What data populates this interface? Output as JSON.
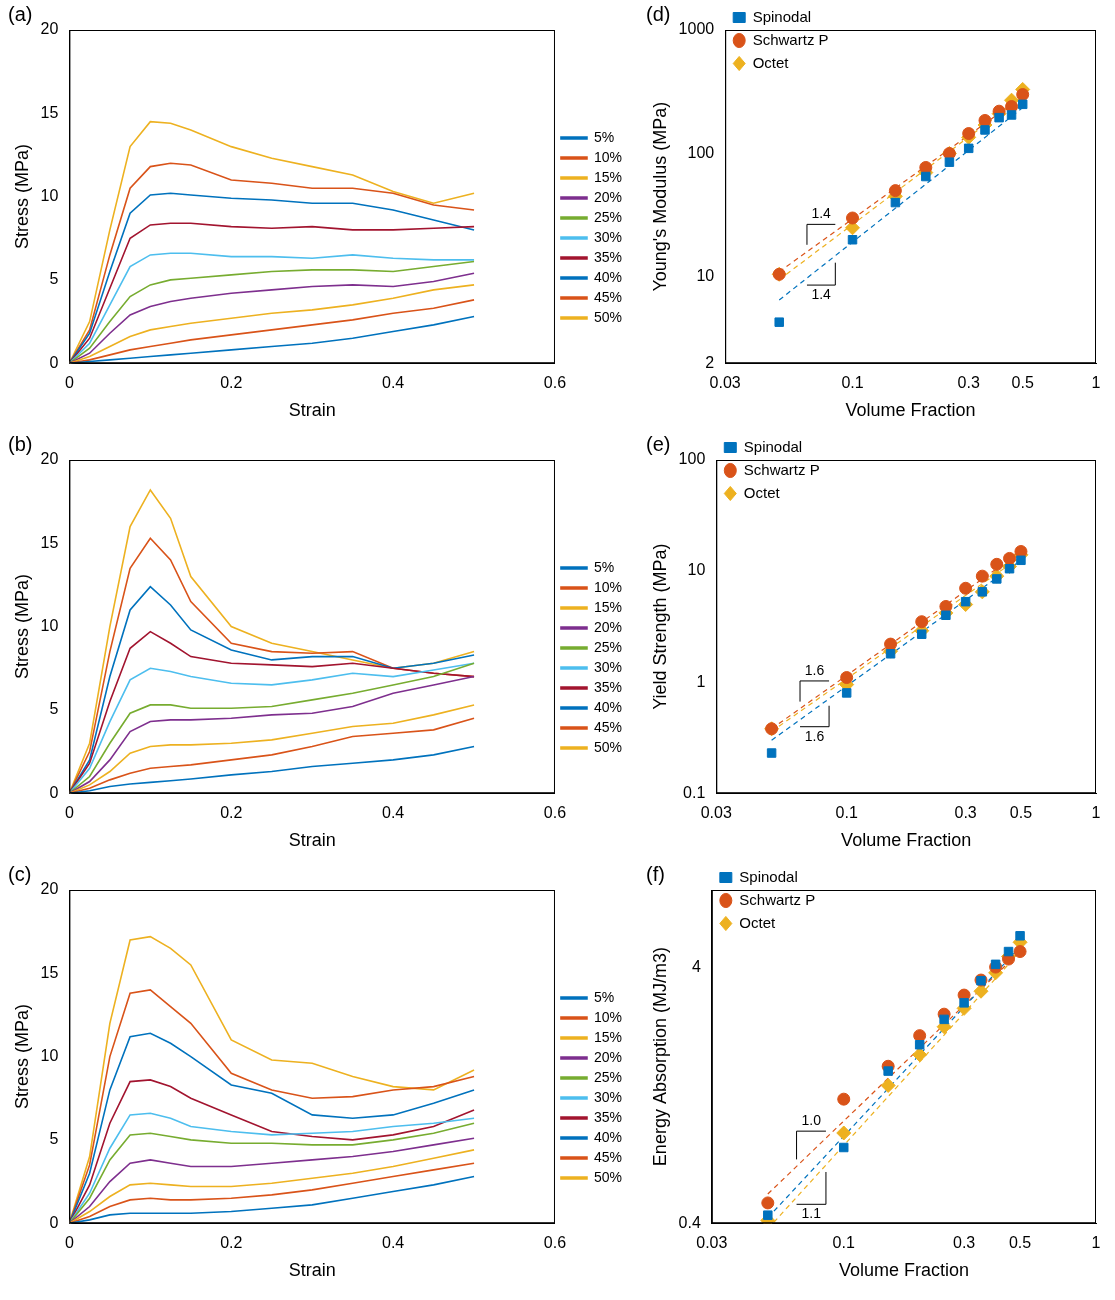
{
  "chart_data": [
    {
      "title": "(a)",
      "type": "line",
      "x_label": "Strain",
      "y_label": "Stress (MPa)",
      "x": [
        0,
        0.025,
        0.05,
        0.075,
        0.1,
        0.125,
        0.15,
        0.2,
        0.25,
        0.3,
        0.35,
        0.4,
        0.45,
        0.5
      ],
      "series": [
        {
          "name": "5%",
          "color": "#0072BD",
          "values": [
            0,
            0.1,
            0.2,
            0.3,
            0.4,
            0.5,
            0.6,
            0.8,
            1,
            1.2,
            1.5,
            1.9,
            2.3,
            2.8
          ]
        },
        {
          "name": "10%",
          "color": "#D95319",
          "values": [
            0,
            0.2,
            0.5,
            0.8,
            1,
            1.2,
            1.4,
            1.7,
            2,
            2.3,
            2.6,
            3,
            3.3,
            3.8
          ]
        },
        {
          "name": "15%",
          "color": "#EDB120",
          "values": [
            0,
            0.4,
            1,
            1.6,
            2,
            2.2,
            2.4,
            2.7,
            3,
            3.2,
            3.5,
            3.9,
            4.4,
            4.7
          ]
        },
        {
          "name": "20%",
          "color": "#7E2F8E",
          "values": [
            0,
            0.6,
            1.8,
            2.9,
            3.4,
            3.7,
            3.9,
            4.2,
            4.4,
            4.6,
            4.7,
            4.6,
            4.9,
            5.4
          ]
        },
        {
          "name": "25%",
          "color": "#77AC30",
          "values": [
            0,
            0.9,
            2.5,
            4,
            4.7,
            5,
            5.1,
            5.3,
            5.5,
            5.6,
            5.6,
            5.5,
            5.8,
            6.1
          ]
        },
        {
          "name": "30%",
          "color": "#4DBEEE",
          "values": [
            0,
            1.2,
            3.5,
            5.8,
            6.5,
            6.6,
            6.6,
            6.4,
            6.4,
            6.3,
            6.5,
            6.3,
            6.2,
            6.2
          ]
        },
        {
          "name": "35%",
          "color": "#A2142F",
          "values": [
            0,
            1.5,
            4.5,
            7.5,
            8.3,
            8.4,
            8.4,
            8.2,
            8.1,
            8.2,
            8,
            8,
            8.1,
            8.2
          ]
        },
        {
          "name": "40%",
          "color": "#0072BD",
          "values": [
            0,
            1.8,
            5.5,
            9,
            10.1,
            10.2,
            10.1,
            9.9,
            9.8,
            9.6,
            9.6,
            9.2,
            8.6,
            8
          ]
        },
        {
          "name": "45%",
          "color": "#D95319",
          "values": [
            0,
            2,
            6.5,
            10.5,
            11.8,
            12,
            11.9,
            11,
            10.8,
            10.5,
            10.5,
            10.2,
            9.5,
            9.2
          ]
        },
        {
          "name": "50%",
          "color": "#EDB120",
          "values": [
            0,
            2.5,
            8,
            13,
            14.5,
            14.4,
            14,
            13,
            12.3,
            11.8,
            11.3,
            10.3,
            9.6,
            10.2
          ]
        }
      ],
      "xlim": [
        0,
        0.6
      ],
      "xticks": [
        0,
        0.2,
        0.4,
        0.6
      ],
      "ylim": [
        0,
        20
      ],
      "yticks": [
        0,
        5,
        10,
        15,
        20
      ],
      "grid": false,
      "legend": "right"
    },
    {
      "title": "(b)",
      "type": "line",
      "x_label": "Strain",
      "y_label": "Stress (MPa)",
      "x": [
        0,
        0.025,
        0.05,
        0.075,
        0.1,
        0.125,
        0.15,
        0.2,
        0.25,
        0.3,
        0.35,
        0.4,
        0.45,
        0.5
      ],
      "series": [
        {
          "name": "5%",
          "color": "#0072BD",
          "values": [
            0,
            0.15,
            0.4,
            0.55,
            0.65,
            0.75,
            0.85,
            1.1,
            1.3,
            1.6,
            1.8,
            2,
            2.3,
            2.8
          ]
        },
        {
          "name": "10%",
          "color": "#D95319",
          "values": [
            0,
            0.3,
            0.8,
            1.2,
            1.5,
            1.6,
            1.7,
            2,
            2.3,
            2.8,
            3.4,
            3.6,
            3.8,
            4.5
          ]
        },
        {
          "name": "15%",
          "color": "#EDB120",
          "values": [
            0,
            0.5,
            1.3,
            2.4,
            2.8,
            2.9,
            2.9,
            3,
            3.2,
            3.6,
            4,
            4.2,
            4.7,
            5.3
          ]
        },
        {
          "name": "20%",
          "color": "#7E2F8E",
          "values": [
            0,
            0.7,
            2,
            3.7,
            4.3,
            4.4,
            4.4,
            4.5,
            4.7,
            4.8,
            5.2,
            6,
            6.5,
            7
          ]
        },
        {
          "name": "25%",
          "color": "#77AC30",
          "values": [
            0,
            1,
            3,
            4.8,
            5.3,
            5.3,
            5.1,
            5.1,
            5.2,
            5.6,
            6,
            6.5,
            7,
            7.8
          ]
        },
        {
          "name": "30%",
          "color": "#4DBEEE",
          "values": [
            0,
            1.5,
            4.3,
            6.8,
            7.5,
            7.3,
            7,
            6.6,
            6.5,
            6.8,
            7.2,
            7,
            7.4,
            7.8
          ]
        },
        {
          "name": "35%",
          "color": "#A2142F",
          "values": [
            0,
            1.8,
            5.5,
            8.7,
            9.7,
            9,
            8.2,
            7.8,
            7.7,
            7.6,
            7.8,
            7.5,
            7.2,
            7
          ]
        },
        {
          "name": "40%",
          "color": "#0072BD",
          "values": [
            0,
            2,
            7,
            11,
            12.4,
            11.3,
            9.8,
            8.6,
            8,
            8.2,
            8.2,
            7.5,
            7.8,
            8.3
          ]
        },
        {
          "name": "45%",
          "color": "#D95319",
          "values": [
            0,
            2.5,
            8.5,
            13.5,
            15.3,
            14,
            11.5,
            9,
            8.5,
            8.4,
            8.5,
            7.5,
            7.2,
            7
          ]
        },
        {
          "name": "50%",
          "color": "#EDB120",
          "values": [
            0,
            3,
            10,
            16,
            18.2,
            16.5,
            13,
            10,
            9,
            8.5,
            8,
            7.5,
            7.8,
            8.5
          ]
        }
      ],
      "xlim": [
        0,
        0.6
      ],
      "xticks": [
        0,
        0.2,
        0.4,
        0.6
      ],
      "ylim": [
        0,
        20
      ],
      "yticks": [
        0,
        5,
        10,
        15,
        20
      ],
      "grid": false,
      "legend": "right"
    },
    {
      "title": "(c)",
      "type": "line",
      "x_label": "Strain",
      "y_label": "Stress (MPa)",
      "x": [
        0,
        0.025,
        0.05,
        0.075,
        0.1,
        0.125,
        0.15,
        0.2,
        0.25,
        0.3,
        0.35,
        0.4,
        0.45,
        0.5
      ],
      "series": [
        {
          "name": "5%",
          "color": "#0072BD",
          "values": [
            0,
            0.2,
            0.5,
            0.6,
            0.6,
            0.6,
            0.6,
            0.7,
            0.9,
            1.1,
            1.5,
            1.9,
            2.3,
            2.8
          ]
        },
        {
          "name": "10%",
          "color": "#D95319",
          "values": [
            0,
            0.4,
            1,
            1.4,
            1.5,
            1.4,
            1.4,
            1.5,
            1.7,
            2,
            2.4,
            2.8,
            3.2,
            3.6
          ]
        },
        {
          "name": "15%",
          "color": "#EDB120",
          "values": [
            0,
            0.7,
            1.6,
            2.3,
            2.4,
            2.3,
            2.2,
            2.2,
            2.4,
            2.7,
            3,
            3.4,
            3.9,
            4.4
          ]
        },
        {
          "name": "20%",
          "color": "#7E2F8E",
          "values": [
            0,
            1,
            2.5,
            3.6,
            3.8,
            3.6,
            3.4,
            3.4,
            3.6,
            3.8,
            4,
            4.3,
            4.7,
            5.1
          ]
        },
        {
          "name": "25%",
          "color": "#77AC30",
          "values": [
            0,
            1.5,
            3.8,
            5.3,
            5.4,
            5.2,
            5,
            4.8,
            4.8,
            4.7,
            4.7,
            5,
            5.4,
            6
          ]
        },
        {
          "name": "30%",
          "color": "#4DBEEE",
          "values": [
            0,
            1.8,
            4.5,
            6.5,
            6.6,
            6.3,
            5.8,
            5.5,
            5.3,
            5.4,
            5.5,
            5.8,
            6,
            6.3
          ]
        },
        {
          "name": "35%",
          "color": "#A2142F",
          "values": [
            0,
            2.3,
            6,
            8.5,
            8.6,
            8.2,
            7.5,
            6.5,
            5.5,
            5.2,
            5,
            5.3,
            5.8,
            6.8
          ]
        },
        {
          "name": "40%",
          "color": "#0072BD",
          "values": [
            0,
            3,
            8,
            11.2,
            11.4,
            10.8,
            10,
            8.3,
            7.8,
            6.5,
            6.3,
            6.5,
            7.2,
            8
          ]
        },
        {
          "name": "45%",
          "color": "#D95319",
          "values": [
            0,
            3.5,
            10,
            13.8,
            14,
            13,
            12,
            9,
            8,
            7.5,
            7.6,
            8,
            8.2,
            8.8
          ]
        },
        {
          "name": "50%",
          "color": "#EDB120",
          "values": [
            0,
            4,
            12,
            17,
            17.2,
            16.5,
            15.5,
            11,
            9.8,
            9.6,
            8.8,
            8.2,
            8,
            9.2
          ]
        }
      ],
      "xlim": [
        0,
        0.6
      ],
      "xticks": [
        0,
        0.2,
        0.4,
        0.6
      ],
      "ylim": [
        0,
        20
      ],
      "yticks": [
        0,
        5,
        10,
        15,
        20
      ],
      "grid": false,
      "legend": "right"
    },
    {
      "title": "(d)",
      "type": "scatter",
      "x_label": "Volume Fraction",
      "y_label": "Young's Modulus (MPa)",
      "x": [
        0.05,
        0.1,
        0.15,
        0.2,
        0.25,
        0.3,
        0.35,
        0.4,
        0.45,
        0.5
      ],
      "series": [
        {
          "name": "Spinodal",
          "color": "#0072BD",
          "marker": "square",
          "values": [
            4.3,
            20,
            40,
            65,
            85,
            110,
            155,
            195,
            205,
            250
          ],
          "fit": {
            "x": [
              0.05,
              0.5
            ],
            "values": [
              6.5,
              235
            ],
            "line_style": "dashed"
          }
        },
        {
          "name": "Schwartz P",
          "color": "#D95319",
          "marker": "circle",
          "values": [
            10.5,
            30,
            50,
            77,
            100,
            145,
            185,
            220,
            240,
            300
          ],
          "fit": {
            "x": [
              0.05,
              0.5
            ],
            "values": [
              11,
              290
            ],
            "line_style": "dashed"
          }
        },
        {
          "name": "Octet",
          "color": "#EDB120",
          "marker": "diamond",
          "values": [
            10.5,
            25,
            45,
            70,
            100,
            135,
            170,
            210,
            270,
            330
          ],
          "fit": {
            "x": [
              0.05,
              0.5
            ],
            "values": [
              9.5,
              290
            ],
            "line_style": "dashed"
          }
        }
      ],
      "log": true,
      "xlim": [
        0.03,
        1
      ],
      "xticks": [
        0.03,
        0.1,
        0.3,
        0.5,
        1
      ],
      "ylim": [
        2,
        1000
      ],
      "yticks": [
        2,
        10,
        100,
        1000
      ],
      "annotations": [
        "1.4",
        "1.4"
      ],
      "grid": false,
      "legend": "upper left"
    },
    {
      "title": "(e)",
      "type": "scatter",
      "x_label": "Volume Fraction",
      "y_label": "Yield Strength (MPa)",
      "x": [
        0.05,
        0.1,
        0.15,
        0.2,
        0.25,
        0.3,
        0.35,
        0.4,
        0.45,
        0.5
      ],
      "series": [
        {
          "name": "Spinodal",
          "color": "#0072BD",
          "marker": "square",
          "values": [
            0.23,
            0.8,
            1.8,
            2.7,
            4,
            5.3,
            6.5,
            8.5,
            10.5,
            12.5
          ],
          "fit": {
            "x": [
              0.05,
              0.5
            ],
            "values": [
              0.3,
              12.5
            ],
            "line_style": "dashed"
          }
        },
        {
          "name": "Schwartz P",
          "color": "#D95319",
          "marker": "circle",
          "values": [
            0.38,
            1.1,
            2.2,
            3.5,
            4.8,
            7,
            9,
            11.5,
            13,
            15
          ],
          "fit": {
            "x": [
              0.05,
              0.5
            ],
            "values": [
              0.38,
              15
            ],
            "line_style": "dashed"
          }
        },
        {
          "name": "Octet",
          "color": "#EDB120",
          "marker": "diamond",
          "values": [
            0.38,
            0.95,
            1.9,
            2.9,
            4.2,
            5,
            6.5,
            9,
            11,
            14
          ],
          "fit": {
            "x": [
              0.05,
              0.5
            ],
            "values": [
              0.36,
              13.5
            ],
            "line_style": "dashed"
          }
        }
      ],
      "log": true,
      "xlim": [
        0.03,
        1
      ],
      "xticks": [
        0.03,
        0.1,
        0.3,
        0.5,
        1
      ],
      "ylim": [
        0.1,
        100
      ],
      "yticks": [
        0.1,
        1,
        10,
        100
      ],
      "annotations": [
        "1.6",
        "1.6"
      ],
      "grid": false,
      "legend": "upper left"
    },
    {
      "title": "(f)",
      "type": "scatter",
      "x_label": "Volume Fraction",
      "y_label": "Energy Absorption (MJ/m3)",
      "x": [
        0.05,
        0.1,
        0.15,
        0.2,
        0.25,
        0.3,
        0.35,
        0.4,
        0.45,
        0.5
      ],
      "series": [
        {
          "name": "Spinodal",
          "color": "#0072BD",
          "marker": "square",
          "values": [
            0.43,
            0.79,
            1.57,
            1.99,
            2.5,
            2.9,
            3.54,
            4.1,
            4.6,
            5.3
          ],
          "fit": {
            "x": [
              0.05,
              0.5
            ],
            "values": [
              0.42,
              4.8
            ],
            "line_style": "dashed"
          }
        },
        {
          "name": "Schwartz P",
          "color": "#D95319",
          "marker": "circle",
          "values": [
            0.48,
            1.22,
            1.64,
            2.16,
            2.62,
            3.11,
            3.56,
            4,
            4.3,
            4.6
          ],
          "fit": {
            "x": [
              0.05,
              0.5
            ],
            "values": [
              0.52,
              4.6
            ],
            "line_style": "dashed"
          }
        },
        {
          "name": "Octet",
          "color": "#EDB120",
          "marker": "diamond",
          "values": [
            0.41,
            0.9,
            1.38,
            1.82,
            2.34,
            2.76,
            3.22,
            3.8,
            4.4,
            5
          ],
          "fit": {
            "x": [
              0.05,
              0.5
            ],
            "values": [
              0.38,
              4.6
            ],
            "line_style": "dashed"
          }
        }
      ],
      "log": true,
      "xlim": [
        0.03,
        1
      ],
      "xticks": [
        0.03,
        0.1,
        0.3,
        0.5,
        1
      ],
      "ylim": [
        0.4,
        8
      ],
      "yticks": [
        0.4,
        4
      ],
      "annotations": [
        "1.0",
        "1.1"
      ],
      "grid": false,
      "legend": "upper left"
    }
  ]
}
